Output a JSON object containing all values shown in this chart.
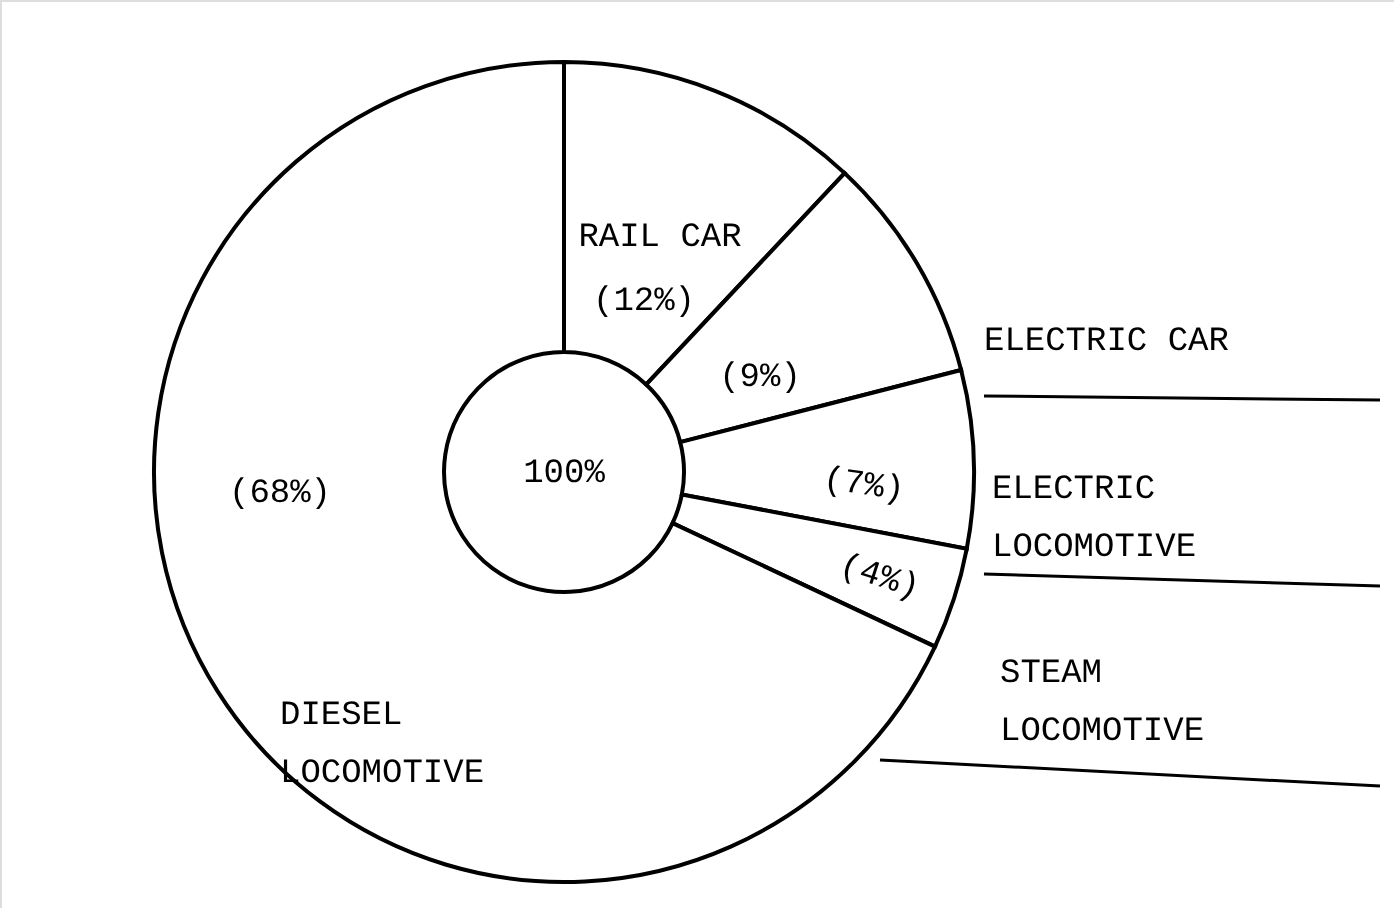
{
  "chart_data": {
    "type": "donut",
    "categories": [
      "RAIL CAR",
      "ELECTRIC CAR",
      "ELECTRIC LOCOMOTIVE",
      "STEAM LOCOMOTIVE",
      "DIESEL LOCOMOTIVE"
    ],
    "values": [
      12,
      9,
      7,
      4,
      68
    ],
    "value_labels": [
      "(12%)",
      "(9%)",
      "(7%)",
      "(4%)",
      "(68%)"
    ],
    "colors": [
      "#ffffff",
      "#ffffff",
      "#ffffff",
      "#ffffff",
      "#ffffff"
    ],
    "annotations": [
      "100%"
    ]
  }
}
